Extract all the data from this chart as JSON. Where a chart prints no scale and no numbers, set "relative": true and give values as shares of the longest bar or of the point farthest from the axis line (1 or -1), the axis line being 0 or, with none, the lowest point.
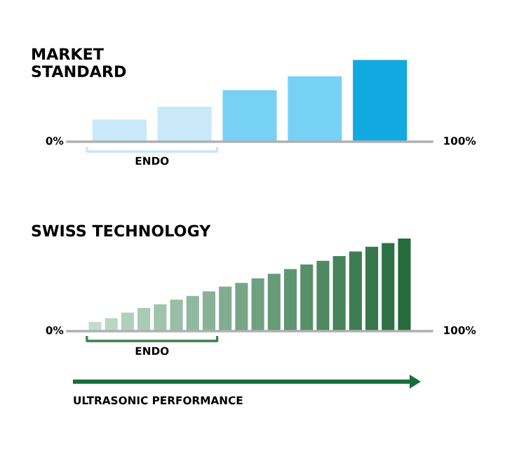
{
  "chart_data": [
    {
      "type": "bar",
      "title": "MARKET STANDARD",
      "relative": true,
      "categories": [
        null,
        null,
        null,
        null,
        null
      ],
      "values": [
        0.27,
        0.43,
        0.63,
        0.8,
        1
      ],
      "colors": [
        "#c9e8f8",
        "#c9e8f8",
        "#77d1f5",
        "#77d1f5",
        "#12a8e0"
      ],
      "annotations": [
        "0%",
        "100%",
        "ENDO"
      ]
    },
    {
      "type": "bar",
      "title": "SWISS TECHNOLOGY",
      "relative": true,
      "xlabel": "ULTRASONIC PERFORMANCE",
      "categories": [
        null,
        null,
        null,
        null,
        null,
        null,
        null,
        null,
        null,
        null,
        null,
        null,
        null,
        null,
        null,
        null,
        null,
        null,
        null,
        null
      ],
      "values": [
        0.1,
        0.14,
        0.2,
        0.25,
        0.29,
        0.34,
        0.38,
        0.43,
        0.48,
        0.52,
        0.57,
        0.62,
        0.67,
        0.72,
        0.76,
        0.81,
        0.86,
        0.91,
        0.95,
        1
      ],
      "colors": [
        "#c2dccb",
        "#bad6c3",
        "#b1d0bc",
        "#a9cab4",
        "#a1c4ad",
        "#99bea5",
        "#90b89e",
        "#88b296",
        "#80ac8f",
        "#77a687",
        "#6fa080",
        "#679b78",
        "#5f9571",
        "#578f69",
        "#4e8962",
        "#46835a",
        "#3e7d53",
        "#36774b",
        "#2d7144",
        "#256b3c"
      ],
      "annotations": [
        "0%",
        "100%",
        "ENDO"
      ]
    }
  ]
}
